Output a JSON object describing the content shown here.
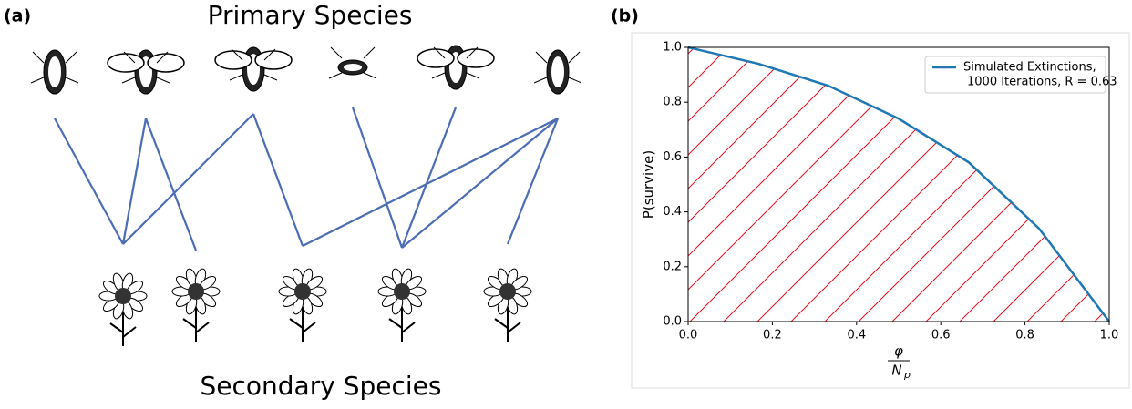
{
  "diagram": {
    "panel_label": "(a)",
    "primary_title": "Primary Species",
    "secondary_title": "Secondary Species",
    "edges": [
      [
        0,
        0
      ],
      [
        1,
        0
      ],
      [
        1,
        1
      ],
      [
        2,
        0
      ],
      [
        2,
        2
      ],
      [
        3,
        3
      ],
      [
        4,
        3
      ],
      [
        5,
        2
      ],
      [
        5,
        3
      ],
      [
        5,
        4
      ]
    ]
  },
  "chart_data": {
    "type": "line",
    "panel_label": "(b)",
    "xlabel": {
      "numerator": "φ",
      "denominator": "N",
      "denominator_sub": "p"
    },
    "ylabel": "P(survive)",
    "x": [
      0,
      0.167,
      0.333,
      0.5,
      0.667,
      0.833,
      1
    ],
    "series": [
      {
        "name": [
          "Simulated Extinctions,",
          "1000 Iterations, R = 0.63"
        ],
        "color": "#1f77b4",
        "values": [
          1.0,
          0.94,
          0.86,
          0.74,
          0.58,
          0.34,
          0.0
        ]
      }
    ],
    "fill_hatch_color": "#e8101c",
    "xlim": [
      0,
      1
    ],
    "ylim": [
      0,
      1
    ],
    "xticks": [
      {
        "value": 0,
        "label": "0.0"
      },
      {
        "value": 0.2,
        "label": "0.2"
      },
      {
        "value": 0.4,
        "label": "0.4"
      },
      {
        "value": 0.6,
        "label": "0.6"
      },
      {
        "value": 0.8,
        "label": "0.8"
      },
      {
        "value": 1,
        "label": "1.0"
      }
    ],
    "yticks": [
      {
        "value": 0,
        "label": "0.0"
      },
      {
        "value": 0.2,
        "label": "0.2"
      },
      {
        "value": 0.4,
        "label": "0.4"
      },
      {
        "value": 0.6,
        "label": "0.6"
      },
      {
        "value": 0.8,
        "label": "0.8"
      },
      {
        "value": 1,
        "label": "1.0"
      }
    ],
    "legend": "upper right"
  }
}
